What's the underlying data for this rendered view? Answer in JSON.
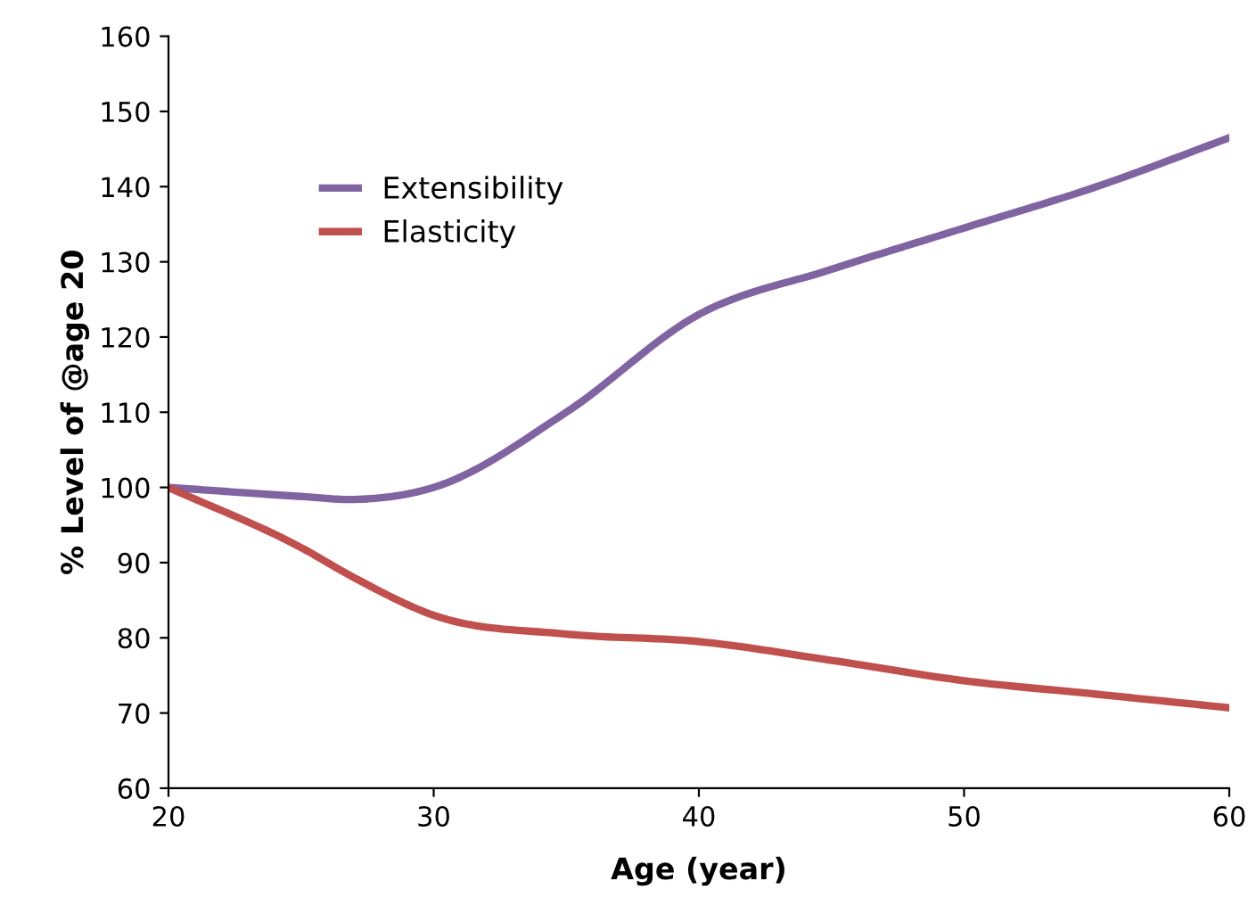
{
  "chart_data": {
    "type": "line",
    "xlabel": "Age (year)",
    "ylabel": "% Level of @age 20",
    "x": [
      20,
      25,
      27,
      30,
      35,
      40,
      45,
      50,
      55,
      60
    ],
    "series": [
      {
        "name": "Extensibility",
        "color": "#8064a2",
        "values": [
          100,
          98.8,
          98.4,
          100,
          110,
          123,
          129,
          134.5,
          140,
          146.5
        ]
      },
      {
        "name": "Elasticity",
        "color": "#c0504d",
        "values": [
          100,
          92,
          88,
          83,
          80.5,
          79.5,
          77,
          74.3,
          72.5,
          70.7
        ]
      }
    ],
    "xlim": [
      20,
      60
    ],
    "xticks": [
      20,
      30,
      40,
      50,
      60
    ],
    "ylim": [
      60,
      160
    ],
    "yticks": [
      60,
      70,
      80,
      90,
      100,
      110,
      120,
      130,
      140,
      150,
      160
    ],
    "grid": false,
    "legend": "top left",
    "marker": "none",
    "line_style": "solid"
  }
}
